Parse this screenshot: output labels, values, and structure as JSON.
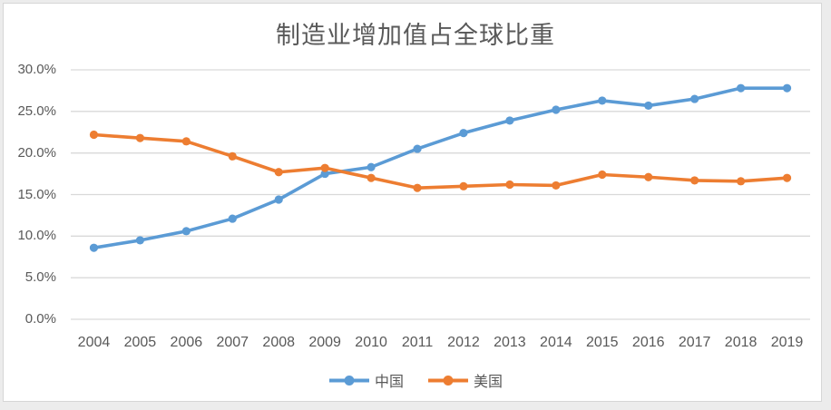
{
  "chart_data": {
    "type": "line",
    "title": "制造业增加值占全球比重",
    "x": [
      2004,
      2005,
      2006,
      2007,
      2008,
      2009,
      2010,
      2011,
      2012,
      2013,
      2014,
      2015,
      2016,
      2017,
      2018,
      2019
    ],
    "series": [
      {
        "name": "中国",
        "color": "#5B9BD5",
        "values": [
          8.6,
          9.5,
          10.6,
          12.1,
          14.4,
          17.5,
          18.3,
          20.5,
          22.4,
          23.9,
          25.2,
          26.3,
          25.7,
          26.5,
          27.8,
          27.8
        ]
      },
      {
        "name": "美国",
        "color": "#ED7D31",
        "values": [
          22.2,
          21.8,
          21.4,
          19.6,
          17.7,
          18.2,
          17.0,
          15.8,
          16.0,
          16.2,
          16.1,
          17.4,
          17.1,
          16.7,
          16.6,
          17.0
        ]
      }
    ],
    "y_ticks": [
      "30.0%",
      "25.0%",
      "20.0%",
      "15.0%",
      "10.0%",
      "5.0%",
      "0.0%"
    ],
    "ylim": [
      0,
      30
    ],
    "y_tick_step": 5,
    "grid": true,
    "legend_position": "bottom",
    "marker": "circle",
    "colors": {
      "gridline": "#D9D9D9",
      "axis_text": "#595959",
      "title_text": "#595959",
      "frame": "#D6D6D6",
      "background": "#FFFFFF"
    }
  }
}
